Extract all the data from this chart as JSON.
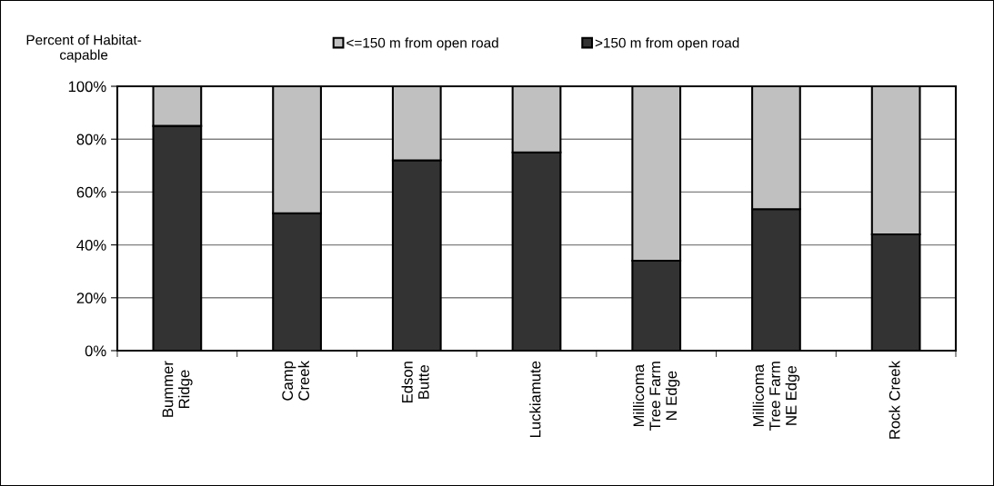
{
  "chart_data": {
    "type": "bar",
    "stacked": true,
    "ylabel": "Percent of Habitat-\ncapable",
    "categories": [
      "Bummer\nRidge",
      "Camp\nCreek",
      "Edson\nButte",
      "Luckiamute",
      "Millicoma\nTree Farm\nN Edge",
      "Millicoma\nTree Farm\nNE Edge",
      "Rock Creek"
    ],
    "series": [
      {
        "name": ">150 m from open road",
        "color": "#333333",
        "values": [
          85,
          52,
          72,
          75,
          34,
          53.5,
          44
        ]
      },
      {
        "name": "<=150 m from open road",
        "color": "#c0c0c0",
        "values": [
          15,
          48,
          28,
          25,
          66,
          46.5,
          56
        ]
      }
    ],
    "ylim": [
      0,
      100
    ],
    "yticks": [
      {
        "value": 0,
        "label": "0%"
      },
      {
        "value": 20,
        "label": "20%"
      },
      {
        "value": 40,
        "label": "40%"
      },
      {
        "value": 60,
        "label": "60%"
      },
      {
        "value": 80,
        "label": "80%"
      },
      {
        "value": 100,
        "label": "100%"
      }
    ],
    "grid": "y",
    "legend": "top"
  }
}
